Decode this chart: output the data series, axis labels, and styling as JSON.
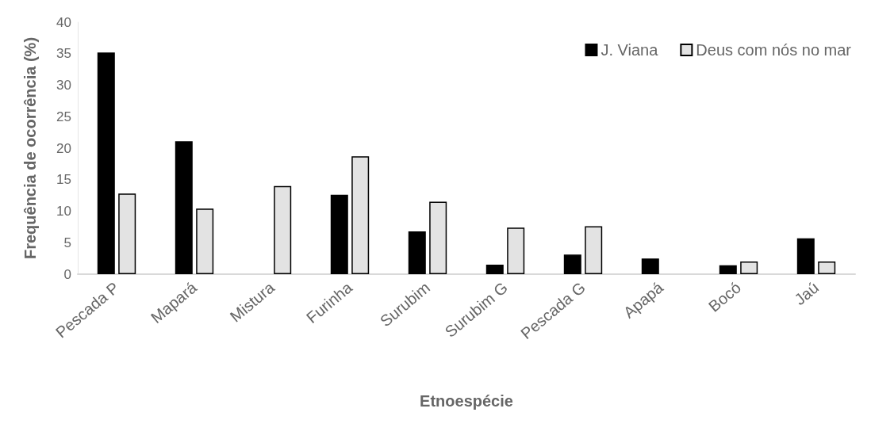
{
  "chart_data": {
    "type": "bar",
    "xlabel": "Etnoespécie",
    "ylabel": "Frequência de ocorrência (%)",
    "categories": [
      "Pescada P",
      "Mapará",
      "Mistura",
      "Furinha",
      "Surubim",
      "Surubim G",
      "Pescada G",
      "Apapá",
      "Bocó",
      "Jaú"
    ],
    "series": [
      {
        "name": "J. Viana",
        "color": "#000000",
        "values": [
          35.2,
          21.1,
          null,
          12.6,
          6.8,
          1.5,
          3.1,
          2.5,
          1.4,
          5.7
        ]
      },
      {
        "name": "Deus com nós no mar",
        "color": "#e3e3e3",
        "values": [
          12.8,
          10.4,
          14.0,
          18.7,
          11.5,
          7.4,
          7.6,
          null,
          2.0,
          2.0
        ]
      }
    ],
    "ylim": [
      0,
      40
    ],
    "yticks": [
      0,
      5,
      10,
      15,
      20,
      25,
      30,
      35,
      40
    ],
    "grid": false,
    "legend": "top right"
  }
}
